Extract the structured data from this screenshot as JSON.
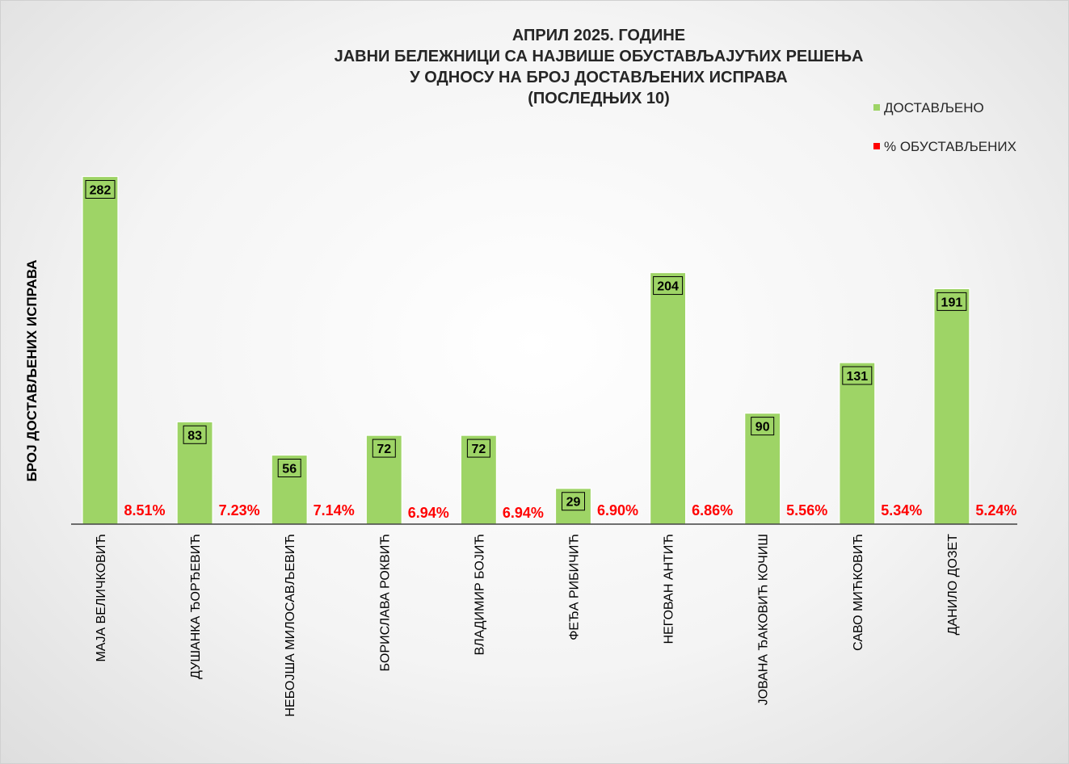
{
  "chart_data": {
    "type": "bar",
    "title": [
      "АПРИЛ 2025. ГОДИНЕ",
      "ЈАВНИ БЕЛЕЖНИЦИ СА НАЈВИШЕ ОБУСТАВЉАЈУЋИХ РЕШЕЊА",
      "У ОДНОСУ НА БРОЈ ДОСТАВЉЕНИХ ИСПРАВА",
      "(ПОСЛЕДЊИХ 10)"
    ],
    "ylabel": "БРОЈ ДОСТАВЉЕНИХ ИСПРАВА",
    "xlabel": "",
    "ylim": [
      0,
      300
    ],
    "legend_position": "top-right",
    "categories": [
      "МАЈА ВЕЛИЧКОВИЋ",
      "ДУШАНКА ЂОРЂЕВИЋ",
      "НЕБОЈША МИЛОСАВЉЕВИЋ",
      "БОРИСЛАВА РОКВИЋ",
      "ВЛАДИМИР БОЈИЋ",
      "ФЕЂА РИБИЧИЋ",
      "НЕГОВАН АНТИЋ",
      "ЈОВАНА ЂАКОВИЋ КОЧИШ",
      "САВО МИЋКОВИЋ",
      "ДАНИЛО ДОЗЕТ"
    ],
    "series": [
      {
        "name": "ДОСТАВЉЕНО",
        "color": "#9ed466",
        "values": [
          282,
          83,
          56,
          72,
          72,
          29,
          204,
          90,
          131,
          191
        ],
        "labels": [
          "282",
          "83",
          "56",
          "72",
          "72",
          "29",
          "204",
          "90",
          "131",
          "191"
        ]
      },
      {
        "name": "% ОБУСТАВЉЕНИХ",
        "color": "#ff0000",
        "values": [
          8.51,
          7.23,
          7.14,
          6.94,
          6.94,
          6.9,
          6.86,
          5.56,
          5.34,
          5.24
        ],
        "labels": [
          "8.51%",
          "7.23%",
          "7.14%",
          "6.94%",
          "6.94%",
          "6.90%",
          "6.86%",
          "5.56%",
          "5.34%",
          "5.24%"
        ]
      }
    ]
  }
}
